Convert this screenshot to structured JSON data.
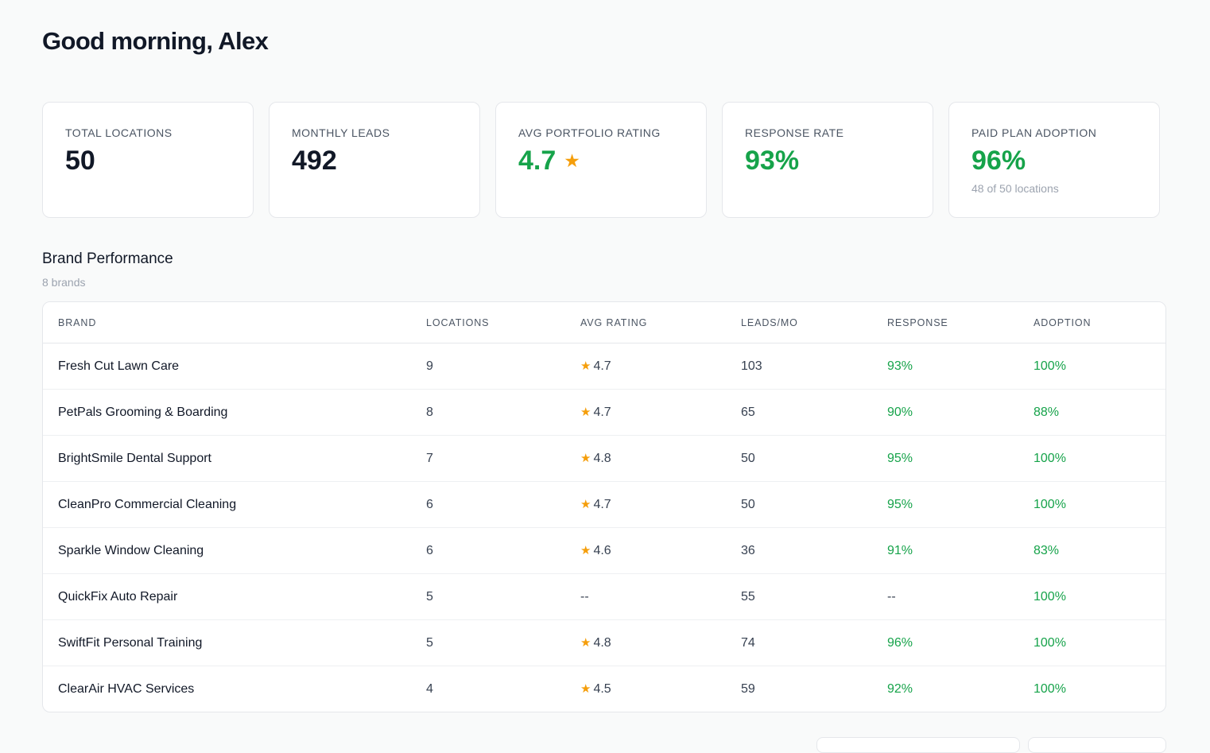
{
  "greeting": "Good morning, Alex",
  "stats": [
    {
      "label": "TOTAL LOCATIONS",
      "value": "50",
      "value_color": "#111827",
      "star": "",
      "sub": ""
    },
    {
      "label": "MONTHLY LEADS",
      "value": "492",
      "value_color": "#111827",
      "star": "",
      "sub": ""
    },
    {
      "label": "AVG PORTFOLIO RATING",
      "value": "4.7",
      "value_color": "#16a34a",
      "star": "★",
      "sub": ""
    },
    {
      "label": "RESPONSE RATE",
      "value": "93%",
      "value_color": "#16a34a",
      "star": "",
      "sub": ""
    },
    {
      "label": "PAID PLAN ADOPTION",
      "value": "96%",
      "value_color": "#16a34a",
      "star": "",
      "sub": "48 of 50 locations"
    }
  ],
  "brand_section": {
    "title": "Brand Performance",
    "subtitle": "8 brands",
    "columns": [
      "BRAND",
      "LOCATIONS",
      "AVG RATING",
      "LEADS/MO",
      "RESPONSE",
      "ADOPTION"
    ],
    "rows": [
      {
        "brand": "Fresh Cut Lawn Care",
        "locations": "9",
        "rating": "4.7",
        "leads": "103",
        "response": "93%",
        "adoption": "100%"
      },
      {
        "brand": "PetPals Grooming & Boarding",
        "locations": "8",
        "rating": "4.7",
        "leads": "65",
        "response": "90%",
        "adoption": "88%"
      },
      {
        "brand": "BrightSmile Dental Support",
        "locations": "7",
        "rating": "4.8",
        "leads": "50",
        "response": "95%",
        "adoption": "100%"
      },
      {
        "brand": "CleanPro Commercial Cleaning",
        "locations": "6",
        "rating": "4.7",
        "leads": "50",
        "response": "95%",
        "adoption": "100%"
      },
      {
        "brand": "Sparkle Window Cleaning",
        "locations": "6",
        "rating": "4.6",
        "leads": "36",
        "response": "91%",
        "adoption": "83%"
      },
      {
        "brand": "QuickFix Auto Repair",
        "locations": "5",
        "rating": "--",
        "leads": "55",
        "response": "--",
        "adoption": "100%"
      },
      {
        "brand": "SwiftFit Personal Training",
        "locations": "5",
        "rating": "4.8",
        "leads": "74",
        "response": "96%",
        "adoption": "100%"
      },
      {
        "brand": "ClearAir HVAC Services",
        "locations": "4",
        "rating": "4.5",
        "leads": "59",
        "response": "92%",
        "adoption": "100%"
      }
    ]
  },
  "colors": {
    "accent_green": "#16a34a",
    "star": "#f59e0b",
    "text": "#111827"
  },
  "icons": {
    "rating": "star-icon"
  }
}
